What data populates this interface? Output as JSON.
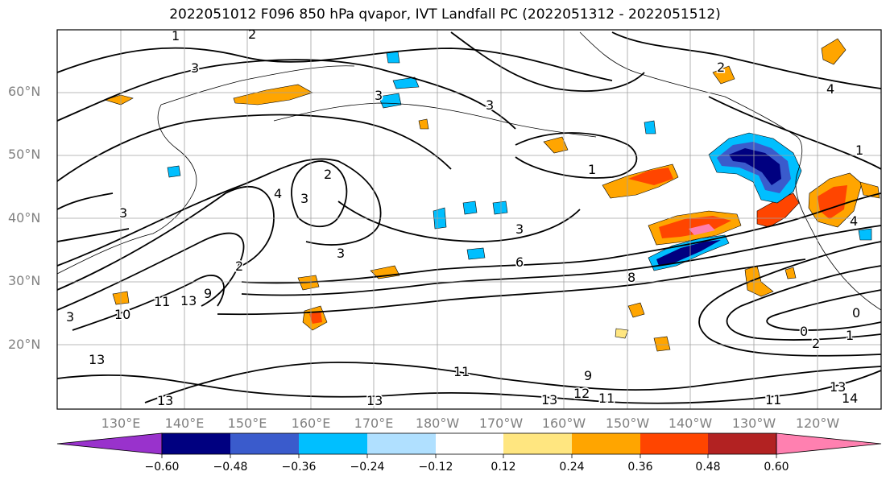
{
  "title": "2022051012 F096 850 hPa qvapor, IVT Landfall PC (2022051312 - 2022051512)",
  "latitude_labels": [
    "60°N",
    "50°N",
    "40°N",
    "30°N",
    "20°N"
  ],
  "longitude_labels": [
    "130°E",
    "140°E",
    "150°E",
    "160°E",
    "170°E",
    "180°W",
    "170°W",
    "160°W",
    "150°W",
    "140°W",
    "130°W",
    "120°W"
  ],
  "colorbar": {
    "ticks": [
      "−0.60",
      "−0.48",
      "−0.36",
      "−0.24",
      "−0.12",
      "0.12",
      "0.24",
      "0.36",
      "0.48",
      "0.60"
    ],
    "colors": [
      "#9932cc",
      "#000080",
      "#3a5bcc",
      "#00bfff",
      "#b0e0ff",
      "#ffffff",
      "#ffe680",
      "#ffa500",
      "#ff4500",
      "#b22222",
      "#ff80b0"
    ]
  },
  "contour_labels": [
    "1",
    "2",
    "3",
    "3",
    "3",
    "3",
    "3",
    "2",
    "3",
    "4",
    "1",
    "6",
    "8",
    "13",
    "11",
    "13",
    "10",
    "13",
    "11",
    "13",
    "12",
    "11",
    "11",
    "9",
    "2",
    "0",
    "1",
    "0",
    "13",
    "14",
    "4",
    "2",
    "3",
    "1",
    "2",
    "13",
    "3",
    "4",
    "9"
  ]
}
